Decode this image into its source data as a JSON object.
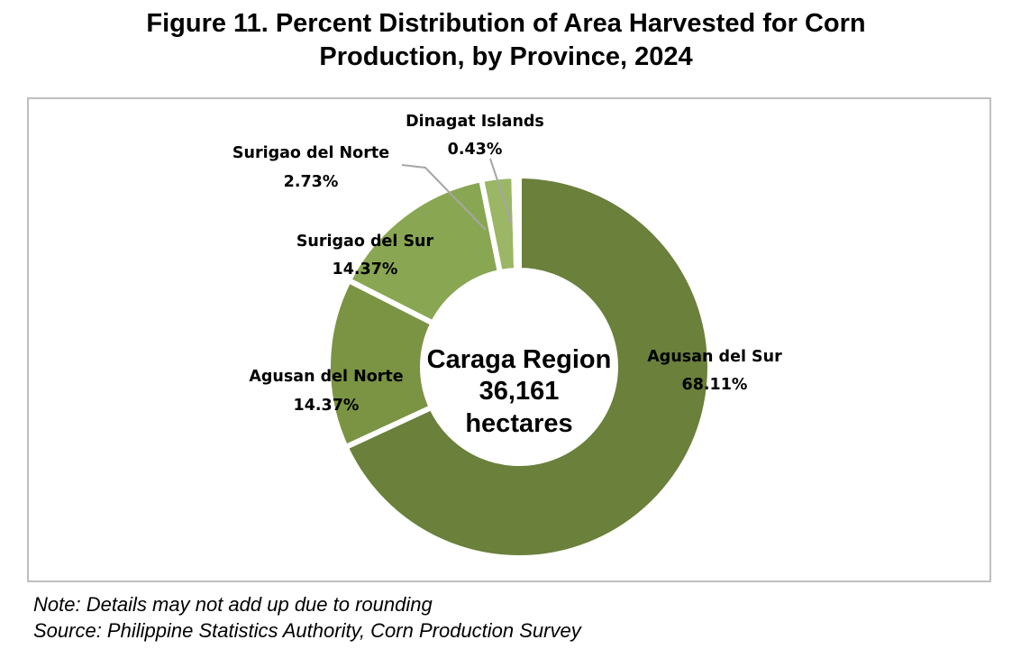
{
  "title": {
    "line1": "Figure 11. Percent Distribution of Area Harvested for Corn",
    "line2": "Production, by Province, 2024"
  },
  "colors": {
    "agusan_del_sur": "#6a803b",
    "agusan_del_norte": "#7b9443",
    "surigao_del_sur": "#89a653",
    "surigao_del_norte": "#9bb665",
    "dinagat_islands": "#a9c279",
    "leader_line": "#a6a6a6",
    "frame": "#bfbfbf"
  },
  "chart_data": {
    "type": "pie",
    "variant": "donut",
    "center_label": [
      "Caraga Region",
      "36,161",
      "hectares"
    ],
    "slices": [
      {
        "label": "Agusan del Sur",
        "value": 68.11,
        "value_label": "68.11%"
      },
      {
        "label": "Agusan del Norte",
        "value": 14.37,
        "value_label": "14.37%"
      },
      {
        "label": "Surigao del Sur",
        "value": 14.37,
        "value_label": "14.37%"
      },
      {
        "label": "Surigao del Norte",
        "value": 2.73,
        "value_label": "2.73%"
      },
      {
        "label": "Dinagat Islands",
        "value": 0.43,
        "value_label": "0.43%"
      }
    ]
  },
  "notes": {
    "note": "Note: Details may not add up due to rounding",
    "source": "Source: Philippine Statistics Authority, Corn Production Survey"
  }
}
